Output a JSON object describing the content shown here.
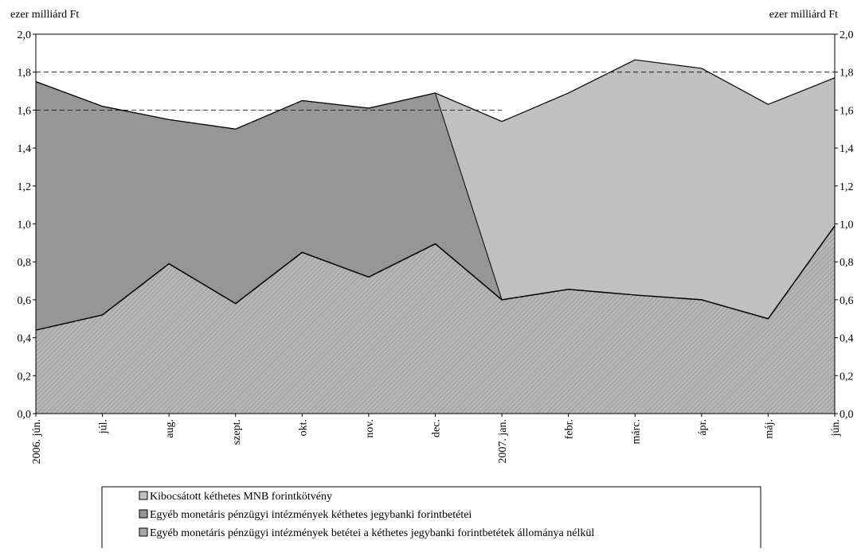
{
  "chart_data": {
    "type": "area",
    "title": "",
    "ylabel_left": "ezer milliárd Ft",
    "ylabel_right": "ezer milliárd Ft",
    "ylim": [
      0,
      2.0
    ],
    "yticks": [
      "0,0",
      "0,2",
      "0,4",
      "0,6",
      "0,8",
      "1,0",
      "1,2",
      "1,4",
      "1,6",
      "1,8",
      "2,0"
    ],
    "stacked": true,
    "categories": [
      "2006. jún.",
      "júl.",
      "aug.",
      "szept.",
      "okt.",
      "nov.",
      "dec.",
      "2007. jan.",
      "febr.",
      "márc.",
      "ápr.",
      "máj.",
      "jún."
    ],
    "series": [
      {
        "name": "Egyéb monetáris pénzügyi intézmények betétei a kéthetes jegybanki forintbetétek állománya nélkül",
        "values": [
          0.44,
          0.52,
          0.79,
          0.58,
          0.85,
          0.72,
          0.895,
          0.6,
          0.655,
          0.625,
          0.6,
          0.5,
          0.99
        ],
        "color": "#a6a6a6",
        "pattern": "diagonal hatch"
      },
      {
        "name": "Egyéb monetáris pénzügyi intézmények kéthetes jegybanki forintbetétei",
        "values": [
          1.31,
          1.1,
          0.76,
          0.92,
          0.8,
          0.89,
          0.795,
          0.0,
          0.0,
          0.0,
          0.0,
          0.0,
          0.0
        ],
        "color": "#969696"
      },
      {
        "name": "Kibocsátott kéthetes MNB forintkötvény",
        "values": [
          0.0,
          0.0,
          0.0,
          0.0,
          0.0,
          0.0,
          0.0,
          0.94,
          1.035,
          1.24,
          1.22,
          1.13,
          0.78
        ],
        "color": "#c0c0c0"
      }
    ],
    "totals": [
      1.75,
      1.62,
      1.55,
      1.5,
      1.65,
      1.61,
      1.69,
      1.54,
      1.69,
      1.865,
      1.82,
      1.63,
      1.77
    ],
    "reference_lines": [
      {
        "y": 1.8,
        "from": "2006. jún.",
        "to": "jún.",
        "style": "dashed"
      },
      {
        "y": 1.6,
        "from": "2006. jún.",
        "to": "2007. jan.",
        "style": "dashed"
      }
    ],
    "grid": false,
    "legend_position": "bottom-center",
    "legend_order": [
      2,
      1,
      0
    ]
  }
}
